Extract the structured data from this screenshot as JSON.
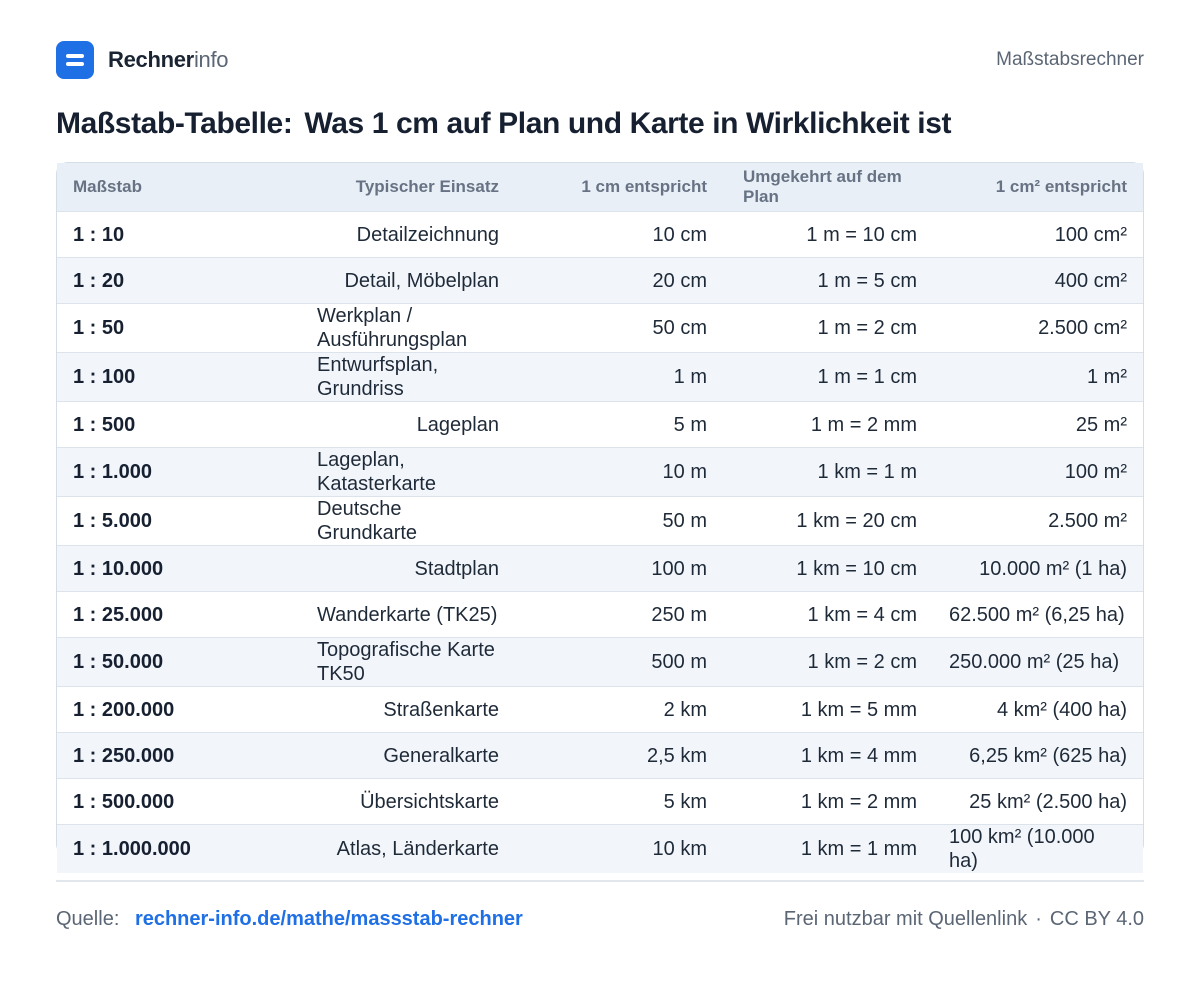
{
  "header": {
    "brand_strong": "Rechner",
    "brand_light": "info",
    "right_label": "Maßstabsrechner"
  },
  "title": {
    "part1": "Maßstab-Tabelle:",
    "part2": "Was 1 cm auf Plan und Karte in Wirklichkeit ist"
  },
  "table": {
    "headers": [
      "Maßstab",
      "Typischer Einsatz",
      "1 cm entspricht",
      "Umgekehrt auf dem Plan",
      "1 cm² entspricht"
    ],
    "rows": [
      {
        "scale": "1 : 10",
        "use": "Detailzeichnung",
        "cm": "10 cm",
        "reverse": "1 m = 10 cm",
        "area": "100 cm²"
      },
      {
        "scale": "1 : 20",
        "use": "Detail, Möbelplan",
        "cm": "20 cm",
        "reverse": "1 m = 5 cm",
        "area": "400 cm²"
      },
      {
        "scale": "1 : 50",
        "use": "Werkplan / Ausführungsplan",
        "cm": "50 cm",
        "reverse": "1 m = 2 cm",
        "area": "2.500 cm²"
      },
      {
        "scale": "1 : 100",
        "use": "Entwurfsplan, Grundriss",
        "cm": "1 m",
        "reverse": "1 m = 1 cm",
        "area": "1 m²"
      },
      {
        "scale": "1 : 500",
        "use": "Lageplan",
        "cm": "5 m",
        "reverse": "1 m = 2 mm",
        "area": "25 m²"
      },
      {
        "scale": "1 : 1.000",
        "use": "Lageplan, Katasterkarte",
        "cm": "10 m",
        "reverse": "1 km = 1 m",
        "area": "100 m²"
      },
      {
        "scale": "1 : 5.000",
        "use": "Deutsche Grundkarte",
        "cm": "50 m",
        "reverse": "1 km = 20 cm",
        "area": "2.500 m²"
      },
      {
        "scale": "1 : 10.000",
        "use": "Stadtplan",
        "cm": "100 m",
        "reverse": "1 km = 10 cm",
        "area": "10.000 m² (1 ha)"
      },
      {
        "scale": "1 : 25.000",
        "use": "Wanderkarte (TK25)",
        "cm": "250 m",
        "reverse": "1 km = 4 cm",
        "area": "62.500 m² (6,25 ha)"
      },
      {
        "scale": "1 : 50.000",
        "use": "Topografische Karte TK50",
        "cm": "500 m",
        "reverse": "1 km = 2 cm",
        "area": "250.000 m² (25 ha)"
      },
      {
        "scale": "1 : 200.000",
        "use": "Straßenkarte",
        "cm": "2 km",
        "reverse": "1 km = 5 mm",
        "area": "4 km² (400 ha)"
      },
      {
        "scale": "1 : 250.000",
        "use": "Generalkarte",
        "cm": "2,5 km",
        "reverse": "1 km = 4 mm",
        "area": "6,25 km² (625 ha)"
      },
      {
        "scale": "1 : 500.000",
        "use": "Übersichtskarte",
        "cm": "5 km",
        "reverse": "1 km = 2 mm",
        "area": "25 km² (2.500 ha)"
      },
      {
        "scale": "1 : 1.000.000",
        "use": "Atlas, Länderkarte",
        "cm": "10 km",
        "reverse": "1 km = 1 mm",
        "area": "100 km² (10.000 ha)"
      }
    ]
  },
  "footer": {
    "source_label": "Quelle:",
    "source_link": "rechner-info.de/mathe/massstab-rechner",
    "license_text": "Frei nutzbar mit Quellenlink",
    "separator": "·",
    "license": "CC BY 4.0"
  }
}
